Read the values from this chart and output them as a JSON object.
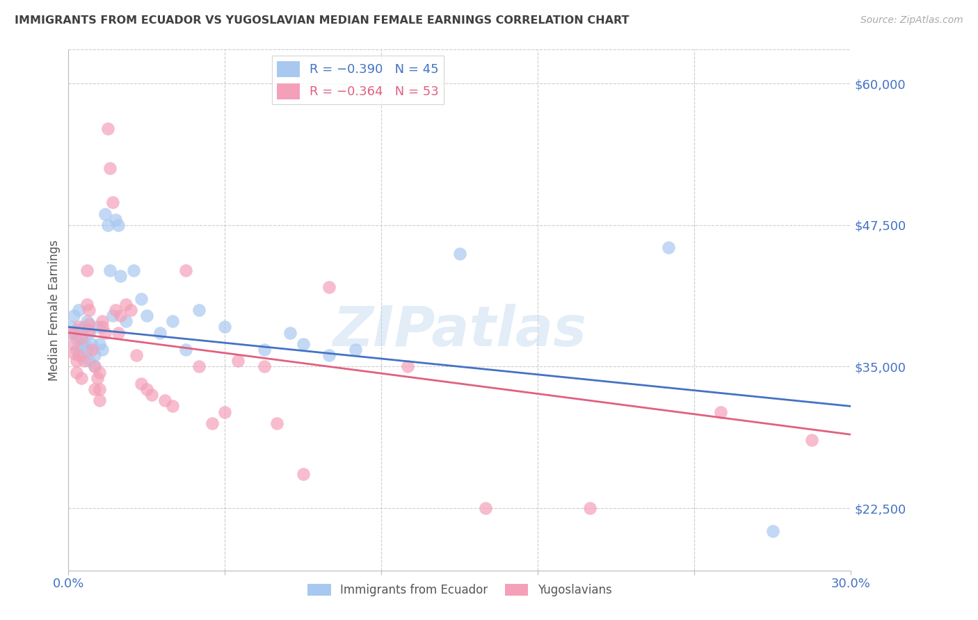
{
  "title": "IMMIGRANTS FROM ECUADOR VS YUGOSLAVIAN MEDIAN FEMALE EARNINGS CORRELATION CHART",
  "source": "Source: ZipAtlas.com",
  "ylabel": "Median Female Earnings",
  "ymin": 17000,
  "ymax": 63000,
  "xmin": 0.0,
  "xmax": 0.3,
  "watermark": "ZIPatlas",
  "ecuador_color": "#a8c8f0",
  "yugoslavian_color": "#f4a0b8",
  "ecuador_line_color": "#4472c4",
  "yugoslavian_line_color": "#e06080",
  "background_color": "#ffffff",
  "grid_color": "#cccccc",
  "title_color": "#404040",
  "axis_label_color": "#4472c4",
  "right_yticks": [
    22500,
    35000,
    47500,
    60000
  ],
  "right_ytick_labels": [
    "$22,500",
    "$35,000",
    "$47,500",
    "$60,000"
  ],
  "ecuador_line_x": [
    0.0,
    0.3
  ],
  "ecuador_line_y": [
    38500,
    31500
  ],
  "yugoslavian_line_x": [
    0.0,
    0.3
  ],
  "yugoslavian_line_y": [
    38000,
    29000
  ],
  "ecuador_scatter": [
    [
      0.001,
      38500
    ],
    [
      0.002,
      39500
    ],
    [
      0.002,
      38000
    ],
    [
      0.003,
      37500
    ],
    [
      0.003,
      36500
    ],
    [
      0.004,
      38200
    ],
    [
      0.004,
      40000
    ],
    [
      0.005,
      37000
    ],
    [
      0.005,
      36000
    ],
    [
      0.006,
      38500
    ],
    [
      0.006,
      37200
    ],
    [
      0.007,
      39000
    ],
    [
      0.007,
      36500
    ],
    [
      0.008,
      35500
    ],
    [
      0.008,
      38000
    ],
    [
      0.009,
      37000
    ],
    [
      0.01,
      36000
    ],
    [
      0.01,
      35000
    ],
    [
      0.011,
      38500
    ],
    [
      0.012,
      37000
    ],
    [
      0.013,
      36500
    ],
    [
      0.014,
      48500
    ],
    [
      0.015,
      47500
    ],
    [
      0.016,
      43500
    ],
    [
      0.017,
      39500
    ],
    [
      0.018,
      48000
    ],
    [
      0.019,
      47500
    ],
    [
      0.02,
      43000
    ],
    [
      0.022,
      39000
    ],
    [
      0.025,
      43500
    ],
    [
      0.028,
      41000
    ],
    [
      0.03,
      39500
    ],
    [
      0.035,
      38000
    ],
    [
      0.04,
      39000
    ],
    [
      0.045,
      36500
    ],
    [
      0.05,
      40000
    ],
    [
      0.06,
      38500
    ],
    [
      0.075,
      36500
    ],
    [
      0.085,
      38000
    ],
    [
      0.09,
      37000
    ],
    [
      0.1,
      36000
    ],
    [
      0.11,
      36500
    ],
    [
      0.15,
      45000
    ],
    [
      0.23,
      45500
    ],
    [
      0.27,
      20500
    ]
  ],
  "yugoslavian_scatter": [
    [
      0.001,
      38000
    ],
    [
      0.002,
      37000
    ],
    [
      0.002,
      36200
    ],
    [
      0.003,
      35500
    ],
    [
      0.003,
      34500
    ],
    [
      0.004,
      38500
    ],
    [
      0.004,
      36000
    ],
    [
      0.005,
      34000
    ],
    [
      0.005,
      37500
    ],
    [
      0.006,
      35500
    ],
    [
      0.007,
      43500
    ],
    [
      0.007,
      40500
    ],
    [
      0.008,
      40000
    ],
    [
      0.008,
      38800
    ],
    [
      0.008,
      38200
    ],
    [
      0.009,
      36500
    ],
    [
      0.01,
      35000
    ],
    [
      0.01,
      33000
    ],
    [
      0.011,
      34000
    ],
    [
      0.012,
      34500
    ],
    [
      0.012,
      33000
    ],
    [
      0.012,
      32000
    ],
    [
      0.013,
      39000
    ],
    [
      0.013,
      38500
    ],
    [
      0.014,
      38000
    ],
    [
      0.015,
      56000
    ],
    [
      0.016,
      52500
    ],
    [
      0.017,
      49500
    ],
    [
      0.018,
      40000
    ],
    [
      0.019,
      38000
    ],
    [
      0.02,
      39500
    ],
    [
      0.022,
      40500
    ],
    [
      0.024,
      40000
    ],
    [
      0.026,
      36000
    ],
    [
      0.028,
      33500
    ],
    [
      0.03,
      33000
    ],
    [
      0.032,
      32500
    ],
    [
      0.037,
      32000
    ],
    [
      0.04,
      31500
    ],
    [
      0.045,
      43500
    ],
    [
      0.05,
      35000
    ],
    [
      0.055,
      30000
    ],
    [
      0.06,
      31000
    ],
    [
      0.065,
      35500
    ],
    [
      0.075,
      35000
    ],
    [
      0.08,
      30000
    ],
    [
      0.09,
      25500
    ],
    [
      0.1,
      42000
    ],
    [
      0.13,
      35000
    ],
    [
      0.16,
      22500
    ],
    [
      0.2,
      22500
    ],
    [
      0.25,
      31000
    ],
    [
      0.285,
      28500
    ]
  ]
}
